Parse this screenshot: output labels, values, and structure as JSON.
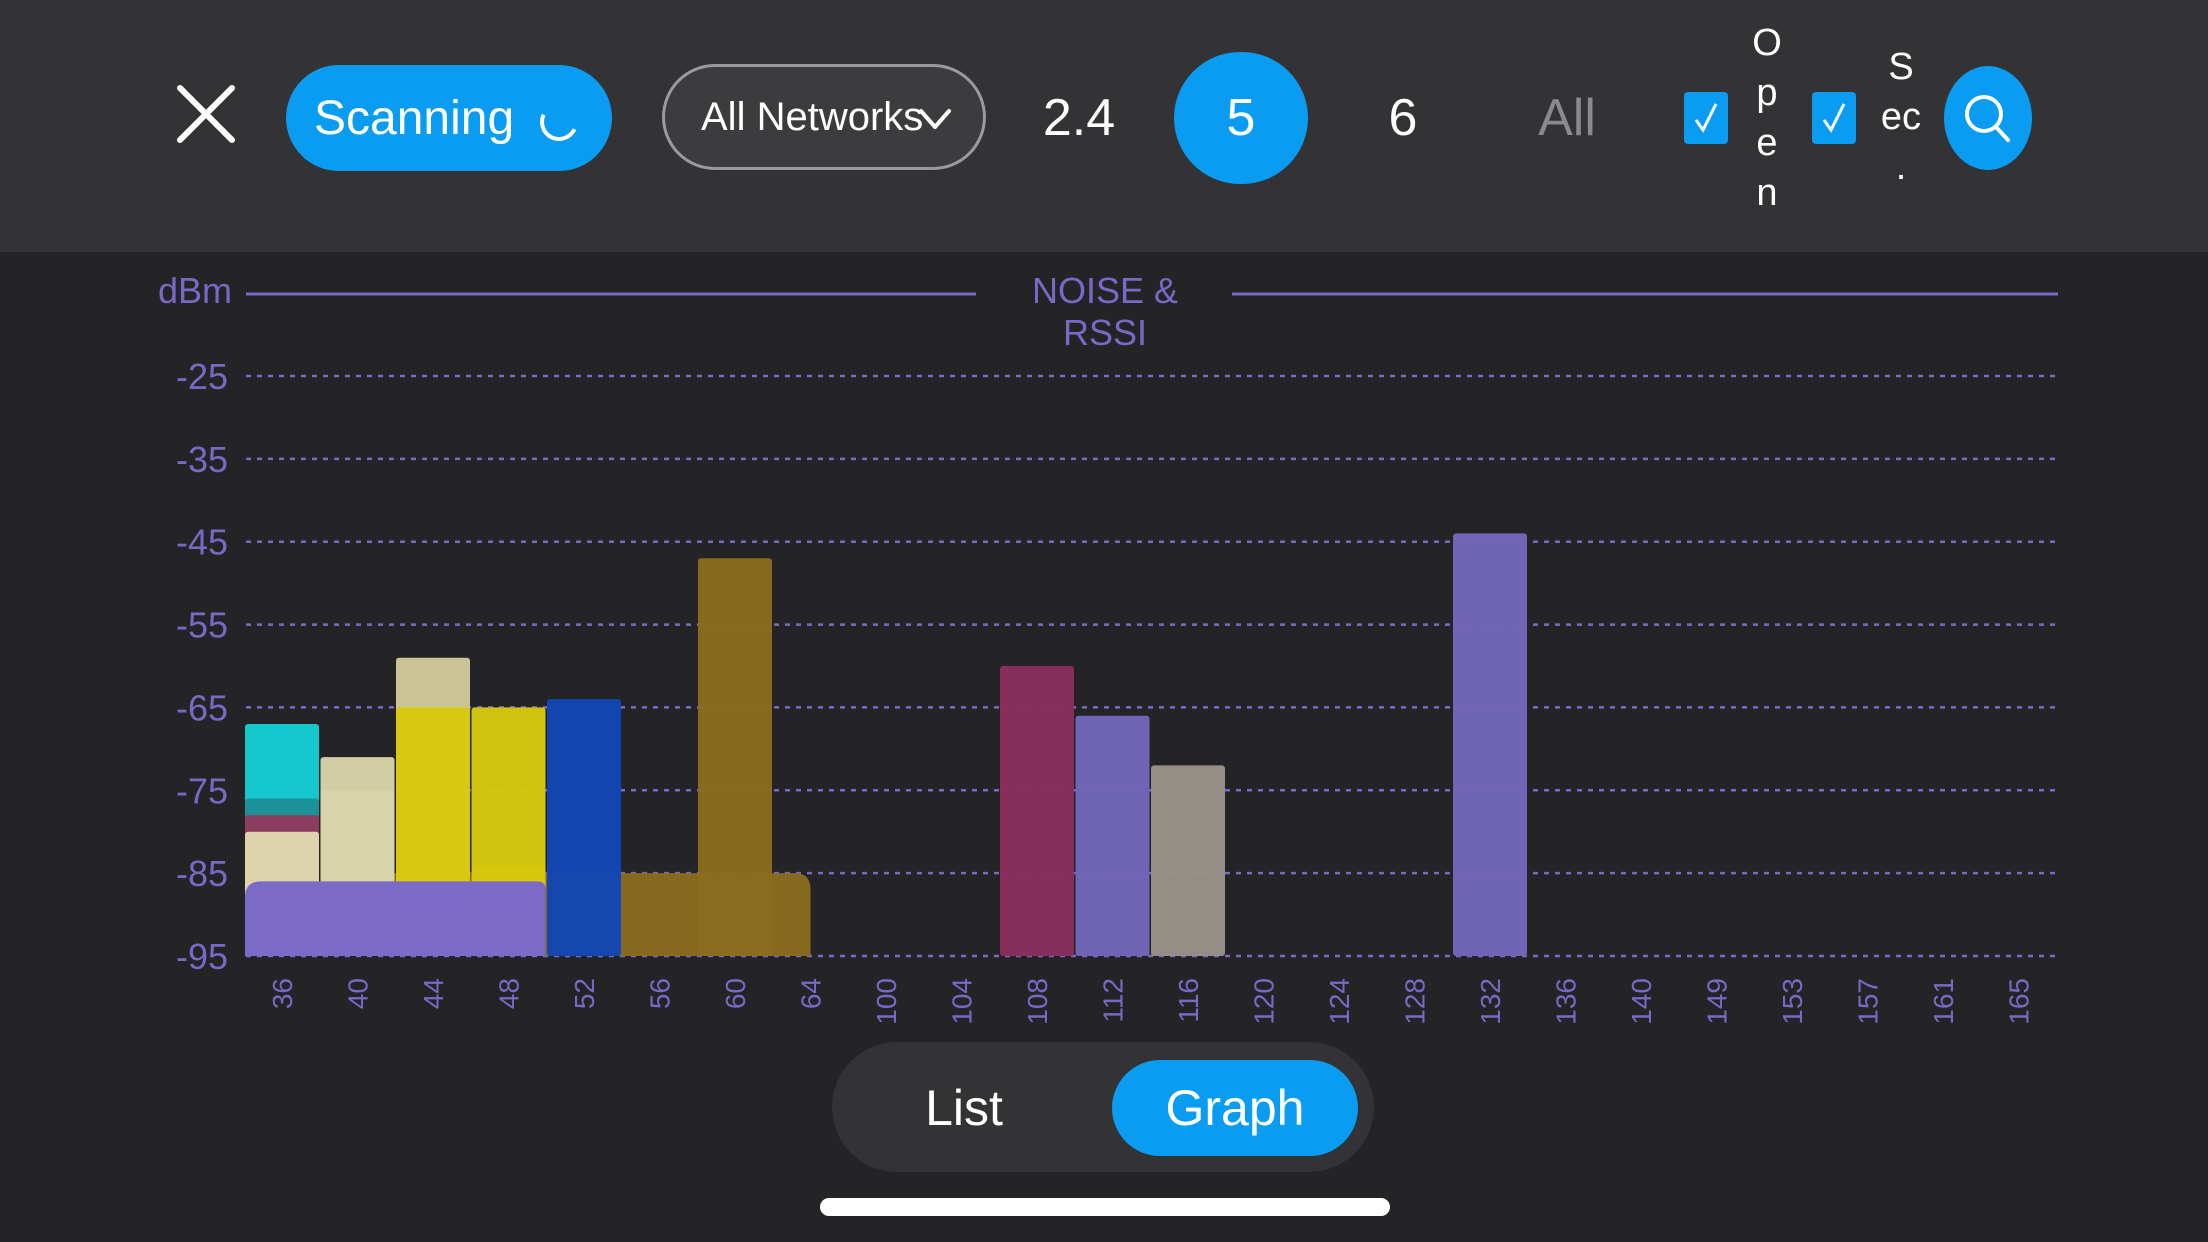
{
  "toolbar": {
    "scan_label": "Scanning",
    "network_filter": "All Networks",
    "bands": [
      "2.4",
      "5",
      "6",
      "All"
    ],
    "active_band": "5",
    "open_label": [
      "O",
      "p",
      "e",
      "n"
    ],
    "sec_label": [
      "S",
      "ec",
      "."
    ]
  },
  "colors": {
    "accent": "#0a9cf0",
    "chart_line": "#7b68c6"
  },
  "icons": {
    "close": "close-icon",
    "spinner": "spinner-icon",
    "dropdown": "chevron-down-icon",
    "check": "check-icon",
    "search": "search-icon"
  },
  "chart_data": {
    "type": "bar",
    "title": "NOISE & RSSI",
    "ylabel": "dBm",
    "ylim": [
      -95,
      -25
    ],
    "yticks": [
      -25,
      -35,
      -45,
      -55,
      -65,
      -75,
      -85,
      -95
    ],
    "categories": [
      "36",
      "40",
      "44",
      "48",
      "52",
      "56",
      "60",
      "64",
      "100",
      "104",
      "108",
      "112",
      "116",
      "120",
      "124",
      "128",
      "132",
      "136",
      "140",
      "149",
      "153",
      "157",
      "161",
      "165"
    ],
    "bars": [
      {
        "channel": "44",
        "rssi": -59,
        "color": "#cfc89a"
      },
      {
        "channel": "36",
        "rssi": -67,
        "color": "#14cdd3"
      },
      {
        "channel": "40",
        "rssi": -71,
        "color": "#d8d3a8"
      },
      {
        "channel": "36",
        "rssi": -76,
        "color": "#1e8e96"
      },
      {
        "channel": "36",
        "rssi": -78,
        "color": "#8e3a5e"
      },
      {
        "channel": "36",
        "rssi": -80,
        "color": "#e0d8b0"
      },
      {
        "channel": "40",
        "rssi": -75,
        "color": "#d8d3a8"
      },
      {
        "channel": "44",
        "rssi": -65,
        "color": "#d6c80e"
      },
      {
        "channel": "48",
        "rssi": -65,
        "color": "#d6c80e"
      },
      {
        "channel": "48",
        "rssi": -84,
        "color": "#d6c80e"
      },
      {
        "channel": "52",
        "rssi": -64,
        "color": "#1246b4"
      },
      {
        "channel": "60",
        "rssi": -47,
        "color": "#8a6c1e"
      },
      {
        "channel": "108",
        "rssi": -60,
        "color": "#882f5c"
      },
      {
        "channel": "112",
        "rssi": -66,
        "color": "#7366ba"
      },
      {
        "channel": "116",
        "rssi": -72,
        "color": "#979389"
      },
      {
        "channel": "132",
        "rssi": -44,
        "color": "#7366ba"
      }
    ],
    "wide_bars": [
      {
        "from": "40",
        "to": "64",
        "rssi": -85,
        "color": "#8a6c1e"
      },
      {
        "from": "36",
        "to": "48",
        "rssi": -86,
        "color": "#7b6ac6"
      }
    ],
    "grid": true
  },
  "view_toggle": {
    "options": [
      "List",
      "Graph"
    ],
    "active": "Graph"
  }
}
